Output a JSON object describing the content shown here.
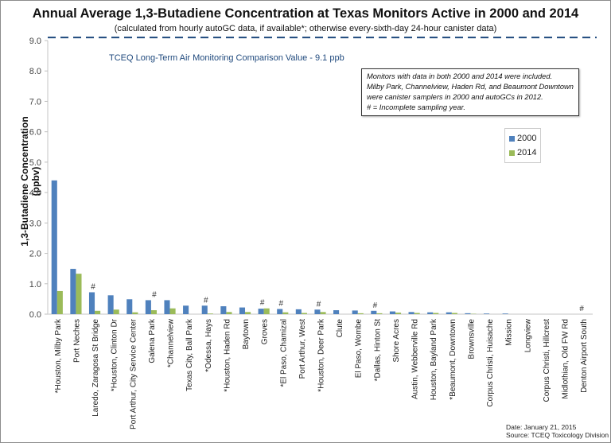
{
  "colors": {
    "series_2000": "#4f81bd",
    "series_2014": "#9bbb59",
    "reference_line": "#1f497d",
    "reference_text": "#1f497d",
    "axis": "#d9d9d9"
  },
  "chart_data": {
    "type": "bar",
    "title": "Annual Average 1,3-Butadiene Concentration at Texas Monitors Active in 2000 and 2014",
    "subtitle": "(calculated from hourly autoGC data, if available*; otherwise every-sixth-day 24-hour canister data)",
    "xlabel": "",
    "ylabel": "1,3-Butadiene Concentration (ppbv)",
    "ylim": [
      0,
      9
    ],
    "yticks": [
      "0.0",
      "1.0",
      "2.0",
      "3.0",
      "4.0",
      "5.0",
      "6.0",
      "7.0",
      "8.0",
      "9.0"
    ],
    "grid": false,
    "legend_position": "right",
    "categories": [
      "*Houston, Milby Park",
      "Port Neches",
      "Laredo, Zaragosa St Bridge",
      "*Houston, Clinton Dr",
      "Port Arthur, City Service Center",
      "Galena Park",
      "*Channelview",
      "Texas City, Ball Park",
      "*Odessa, Hays",
      "*Houston, Haden Rd",
      "Baytown",
      "Groves",
      "*El Paso, Chamizal",
      "Port Arthur, West",
      "*Houston, Deer Park",
      "Clute",
      "El Paso, Wombe",
      "*Dallas, Hinton St",
      "Shore Acres",
      "Austin, Webberville Rd",
      "Houston, Bayland Park",
      "*Beaumont, Downtown",
      "Brownsville",
      "Corpus Christi, Huisache",
      "Mission",
      "Longview",
      "Corpus Christi, Hillcrest",
      "Midlothian, Old FW Rd",
      "Denton Airport South"
    ],
    "series": [
      {
        "name": "2000",
        "values": [
          4.4,
          1.49,
          0.72,
          0.62,
          0.49,
          0.46,
          0.46,
          0.28,
          0.28,
          0.26,
          0.22,
          0.18,
          0.17,
          0.16,
          0.15,
          0.13,
          0.12,
          0.11,
          0.09,
          0.07,
          0.06,
          0.06,
          0.03,
          0.02,
          0.02,
          0.0,
          0.0,
          0.0,
          0.0
        ]
      },
      {
        "name": "2014",
        "values": [
          0.76,
          1.33,
          0.11,
          0.15,
          0.06,
          0.13,
          0.19,
          0.0,
          0.02,
          0.07,
          0.07,
          0.19,
          0.06,
          0.04,
          0.07,
          0.0,
          0.03,
          0.03,
          0.05,
          0.04,
          0.04,
          0.04,
          0.01,
          0.0,
          0.0,
          0.0,
          0.0,
          0.0,
          0.0
        ]
      }
    ],
    "incomplete_marker": "#",
    "incomplete_categories": [
      "Laredo, Zaragosa St Bridge",
      "Galena Park",
      "*Odessa, Hays",
      "Groves",
      "*El Paso, Chamizal",
      "*Houston, Deer Park",
      "*Dallas, Hinton St",
      "Denton Airport South"
    ],
    "reference_line": {
      "value": 9.1,
      "label": "TCEQ Long-Term Air Monitoring Comparison Value - 9.1 ppb"
    },
    "annotation": [
      "Monitors with data in both 2000 and 2014  were included.",
      "Milby Park, Channelview, Haden Rd, and Beaumont Downtown",
      "were canister samplers in 2000 and autoGCs in 2012.",
      "#  = Incomplete sampling year."
    ]
  },
  "legend": {
    "items": [
      "2000",
      "2014"
    ]
  },
  "footer": {
    "date": "Date: January 21, 2015",
    "source": "Source: TCEQ Toxicology Division"
  }
}
